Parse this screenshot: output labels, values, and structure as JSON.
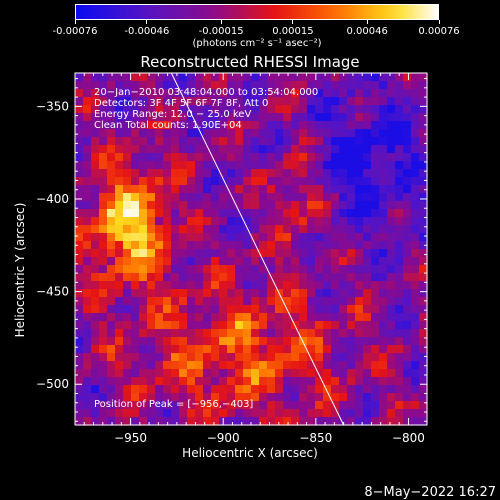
{
  "colorbar": {
    "tick_labels": [
      "-0.00076",
      "-0.00046",
      "-0.00015",
      "0.00015",
      "0.00046",
      "0.00076"
    ],
    "tick_values": [
      -0.00076,
      -0.00046,
      -0.00015,
      0.00015,
      0.00046,
      0.00076
    ],
    "range": [
      -0.00076,
      0.00076
    ],
    "units": "(photons cm⁻² s⁻¹ asec⁻²)"
  },
  "chart_data": {
    "type": "heatmap",
    "title": "Reconstructed RHESSI Image",
    "xlabel": "Heliocentric X (arcsec)",
    "ylabel": "Heliocentric Y (arcsec)",
    "xlim": [
      -980,
      -790
    ],
    "ylim": [
      -522,
      -332
    ],
    "x_ticks": [
      -950,
      -900,
      -850,
      -800
    ],
    "y_ticks": [
      -350,
      -400,
      -450,
      -500
    ],
    "x_tick_labels": [
      "−950",
      "−900",
      "−850",
      "−800"
    ],
    "y_tick_labels": [
      "−350",
      "−400",
      "−450",
      "−500"
    ],
    "colormap": "blue-purple-red-yellow-white",
    "grid": false,
    "peak": [
      -956,
      -403
    ],
    "limb_line": [
      [
        -928,
        -332
      ],
      [
        -835,
        -522
      ]
    ],
    "info_lines": [
      "20−Jan−2010 03:48:04.000 to 03:54:04.000",
      "Detectors: 3F 4F 5F 6F 7F 8F, Att 0",
      "Energy Range: 12.0 − 25.0 keV",
      "Clean      Total counts: 1.90E+04"
    ],
    "peak_label": "Position of Peak = [−956,−403]"
  },
  "footer": {
    "timestamp": "8−May−2022 16:27"
  }
}
